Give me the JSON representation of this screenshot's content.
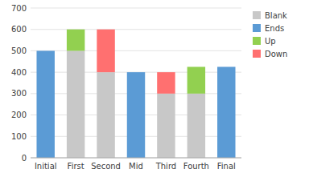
{
  "chart_data": {
    "type": "bar",
    "stacked": true,
    "categories": [
      "Initial",
      "First",
      "Second",
      "Mid",
      "Third",
      "Fourth",
      "Final"
    ],
    "series": [
      {
        "name": "Blank",
        "color": "#C8C8C8",
        "values": [
          0,
          500,
          400,
          0,
          300,
          300,
          0
        ]
      },
      {
        "name": "Ends",
        "color": "#5B9BD5",
        "values": [
          500,
          0,
          0,
          400,
          0,
          0,
          425
        ]
      },
      {
        "name": "Up",
        "color": "#92D050",
        "values": [
          0,
          100,
          0,
          0,
          0,
          125,
          0
        ]
      },
      {
        "name": "Down",
        "color": "#FF7070",
        "values": [
          0,
          0,
          200,
          0,
          100,
          0,
          0
        ]
      }
    ],
    "ylim": [
      0,
      700
    ],
    "yticks": [
      0,
      100,
      200,
      300,
      400,
      500,
      600,
      700
    ],
    "grid": true,
    "legend": "upper right"
  }
}
